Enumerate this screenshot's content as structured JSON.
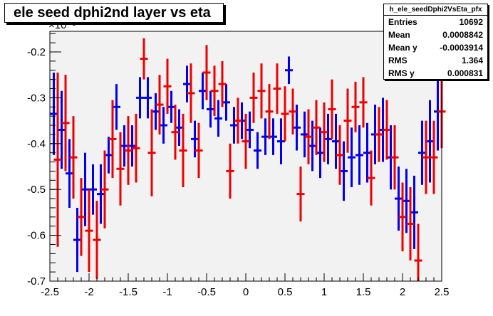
{
  "stats_box": {
    "name": "h_ele_seedDphi2VsEta_pfx",
    "rows": [
      {
        "label": "Entries",
        "value": "10692"
      },
      {
        "label": "Mean",
        "value": "0.0008842"
      },
      {
        "label": "Mean y",
        "value": "-0.0003914"
      },
      {
        "label": "RMS",
        "value": "1.364"
      },
      {
        "label": "RMS y",
        "value": "0.000831"
      }
    ]
  },
  "chart_data": {
    "type": "scatter",
    "title": "ele seed dphi2nd layer vs eta",
    "y_exponent_label": "×10⁻³",
    "xlim": [
      -2.5,
      2.5
    ],
    "ylim": [
      -0.7,
      -0.155
    ],
    "x_ticks": [
      -2.5,
      -2,
      -1.5,
      -1,
      -0.5,
      0,
      0.5,
      1,
      1.5,
      2,
      2.5
    ],
    "x_tick_labels": [
      "-2.5",
      "-2",
      "-1.5",
      "-1",
      "-0.5",
      "0",
      "0.5",
      "1",
      "1.5",
      "2",
      "2.5"
    ],
    "y_ticks": [
      -0.7,
      -0.6,
      -0.5,
      -0.4,
      -0.3,
      -0.2
    ],
    "y_tick_labels": [
      "-0.7",
      "-0.6",
      "-0.5",
      "-0.4",
      "-0.3",
      "-0.2"
    ],
    "colors": {
      "series_blue": "#0000ee",
      "series_red": "#ee0000",
      "frame_bg": "#f2f2f2"
    },
    "series": [
      {
        "color": "#0000ee",
        "x": [
          -2.45,
          -2.35,
          -2.25,
          -2.15,
          -2.05,
          -1.95,
          -1.85,
          -1.75,
          -1.65,
          -1.55,
          -1.45,
          -1.35,
          -1.25,
          -1.15,
          -1.05,
          -0.95,
          -0.85,
          -0.75,
          -0.65,
          -0.55,
          -0.45,
          -0.35,
          -0.25,
          -0.15,
          -0.05,
          0.05,
          0.15,
          0.25,
          0.35,
          0.45,
          0.55,
          0.65,
          0.75,
          0.85,
          0.95,
          1.05,
          1.15,
          1.25,
          1.35,
          1.45,
          1.55,
          1.65,
          1.75,
          1.85,
          1.95,
          2.05,
          2.15,
          2.25,
          2.35,
          2.45
        ],
        "y": [
          -0.335,
          -0.37,
          -0.465,
          -0.61,
          -0.5,
          -0.5,
          -0.51,
          -0.425,
          -0.32,
          -0.405,
          -0.405,
          -0.3,
          -0.3,
          -0.33,
          -0.36,
          -0.32,
          -0.365,
          -0.27,
          -0.39,
          -0.285,
          -0.325,
          -0.345,
          -0.31,
          -0.36,
          -0.35,
          -0.37,
          -0.415,
          -0.385,
          -0.385,
          -0.395,
          -0.24,
          -0.365,
          -0.38,
          -0.405,
          -0.42,
          -0.39,
          -0.395,
          -0.46,
          -0.43,
          -0.425,
          -0.42,
          -0.38,
          -0.37,
          -0.43,
          -0.52,
          -0.525,
          -0.55,
          -0.42,
          -0.395,
          -0.33
        ],
        "err": [
          0.09,
          0.085,
          0.075,
          0.07,
          0.08,
          0.055,
          0.065,
          0.04,
          0.05,
          0.045,
          0.045,
          0.045,
          0.045,
          0.04,
          0.04,
          0.035,
          0.04,
          0.04,
          0.04,
          0.04,
          0.04,
          0.04,
          0.04,
          0.04,
          0.04,
          0.04,
          0.04,
          0.04,
          0.04,
          0.05,
          0.03,
          0.05,
          0.05,
          0.055,
          0.055,
          0.055,
          0.06,
          0.065,
          0.065,
          0.065,
          0.065,
          0.065,
          0.07,
          0.07,
          0.07,
          0.07,
          0.08,
          0.07,
          0.09,
          0.085
        ]
      },
      {
        "color": "#ee0000",
        "x": [
          -2.4,
          -2.3,
          -2.2,
          -2.1,
          -2.0,
          -1.9,
          -1.8,
          -1.7,
          -1.6,
          -1.5,
          -1.4,
          -1.3,
          -1.2,
          -1.1,
          -1.0,
          -0.9,
          -0.8,
          -0.7,
          -0.6,
          -0.5,
          -0.4,
          -0.3,
          -0.2,
          -0.1,
          0.0,
          0.1,
          0.2,
          0.3,
          0.4,
          0.5,
          0.6,
          0.7,
          0.8,
          0.9,
          1.0,
          1.1,
          1.2,
          1.3,
          1.4,
          1.5,
          1.6,
          1.7,
          1.8,
          1.9,
          2.0,
          2.1,
          2.2,
          2.3,
          2.4,
          2.5
        ],
        "y": [
          -0.435,
          -0.355,
          -0.43,
          -0.56,
          -0.59,
          -0.61,
          -0.5,
          -0.39,
          -0.455,
          -0.415,
          -0.41,
          -0.215,
          -0.42,
          -0.315,
          -0.275,
          -0.375,
          -0.415,
          -0.29,
          -0.415,
          -0.245,
          -0.285,
          -0.27,
          -0.46,
          -0.35,
          -0.395,
          -0.3,
          -0.285,
          -0.33,
          -0.28,
          -0.335,
          -0.33,
          -0.51,
          -0.385,
          -0.365,
          -0.375,
          -0.325,
          -0.425,
          -0.35,
          -0.32,
          -0.31,
          -0.475,
          -0.38,
          -0.37,
          -0.43,
          -0.56,
          -0.575,
          -0.655,
          -0.43,
          -0.43,
          -0.33
        ],
        "err": [
          0.19,
          0.105,
          0.09,
          0.085,
          0.09,
          0.085,
          0.085,
          0.085,
          0.08,
          0.075,
          0.075,
          0.045,
          0.095,
          0.065,
          0.06,
          0.06,
          0.08,
          0.065,
          0.06,
          0.06,
          0.055,
          0.05,
          0.06,
          0.05,
          0.06,
          0.055,
          0.06,
          0.06,
          0.055,
          0.06,
          0.05,
          0.06,
          0.06,
          0.06,
          0.065,
          0.065,
          0.065,
          0.07,
          0.055,
          0.055,
          0.06,
          0.06,
          0.065,
          0.07,
          0.075,
          0.08,
          0.08,
          0.08,
          0.08,
          0.08
        ]
      }
    ]
  }
}
